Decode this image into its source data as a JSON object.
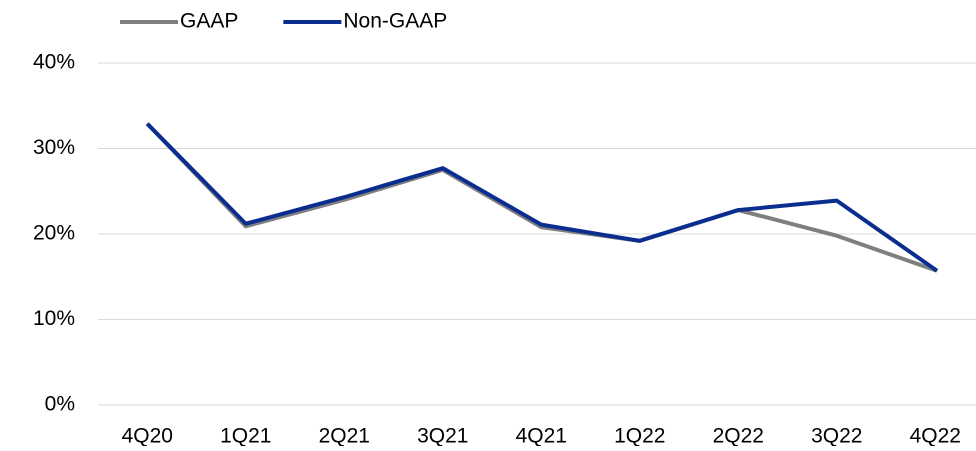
{
  "chart_data": {
    "type": "line",
    "categories": [
      "4Q20",
      "1Q21",
      "2Q21",
      "3Q21",
      "4Q21",
      "1Q22",
      "2Q22",
      "3Q22",
      "4Q22"
    ],
    "series": [
      {
        "name": "GAAP",
        "color": "#7f7f7f",
        "values": [
          32.9,
          20.9,
          24.0,
          27.5,
          20.8,
          19.2,
          22.8,
          19.8,
          15.7
        ]
      },
      {
        "name": "Non-GAAP",
        "color": "#0a2d8f",
        "values": [
          32.9,
          21.2,
          24.3,
          27.7,
          21.1,
          19.2,
          22.8,
          23.9,
          15.7
        ]
      }
    ],
    "ylim": [
      0,
      40
    ],
    "yticks": [
      {
        "value": 0,
        "label": "0%"
      },
      {
        "value": 10,
        "label": "10%"
      },
      {
        "value": 20,
        "label": "20%"
      },
      {
        "value": 30,
        "label": "30%"
      },
      {
        "value": 40,
        "label": "40%"
      }
    ],
    "grid": true,
    "legend": "top"
  }
}
